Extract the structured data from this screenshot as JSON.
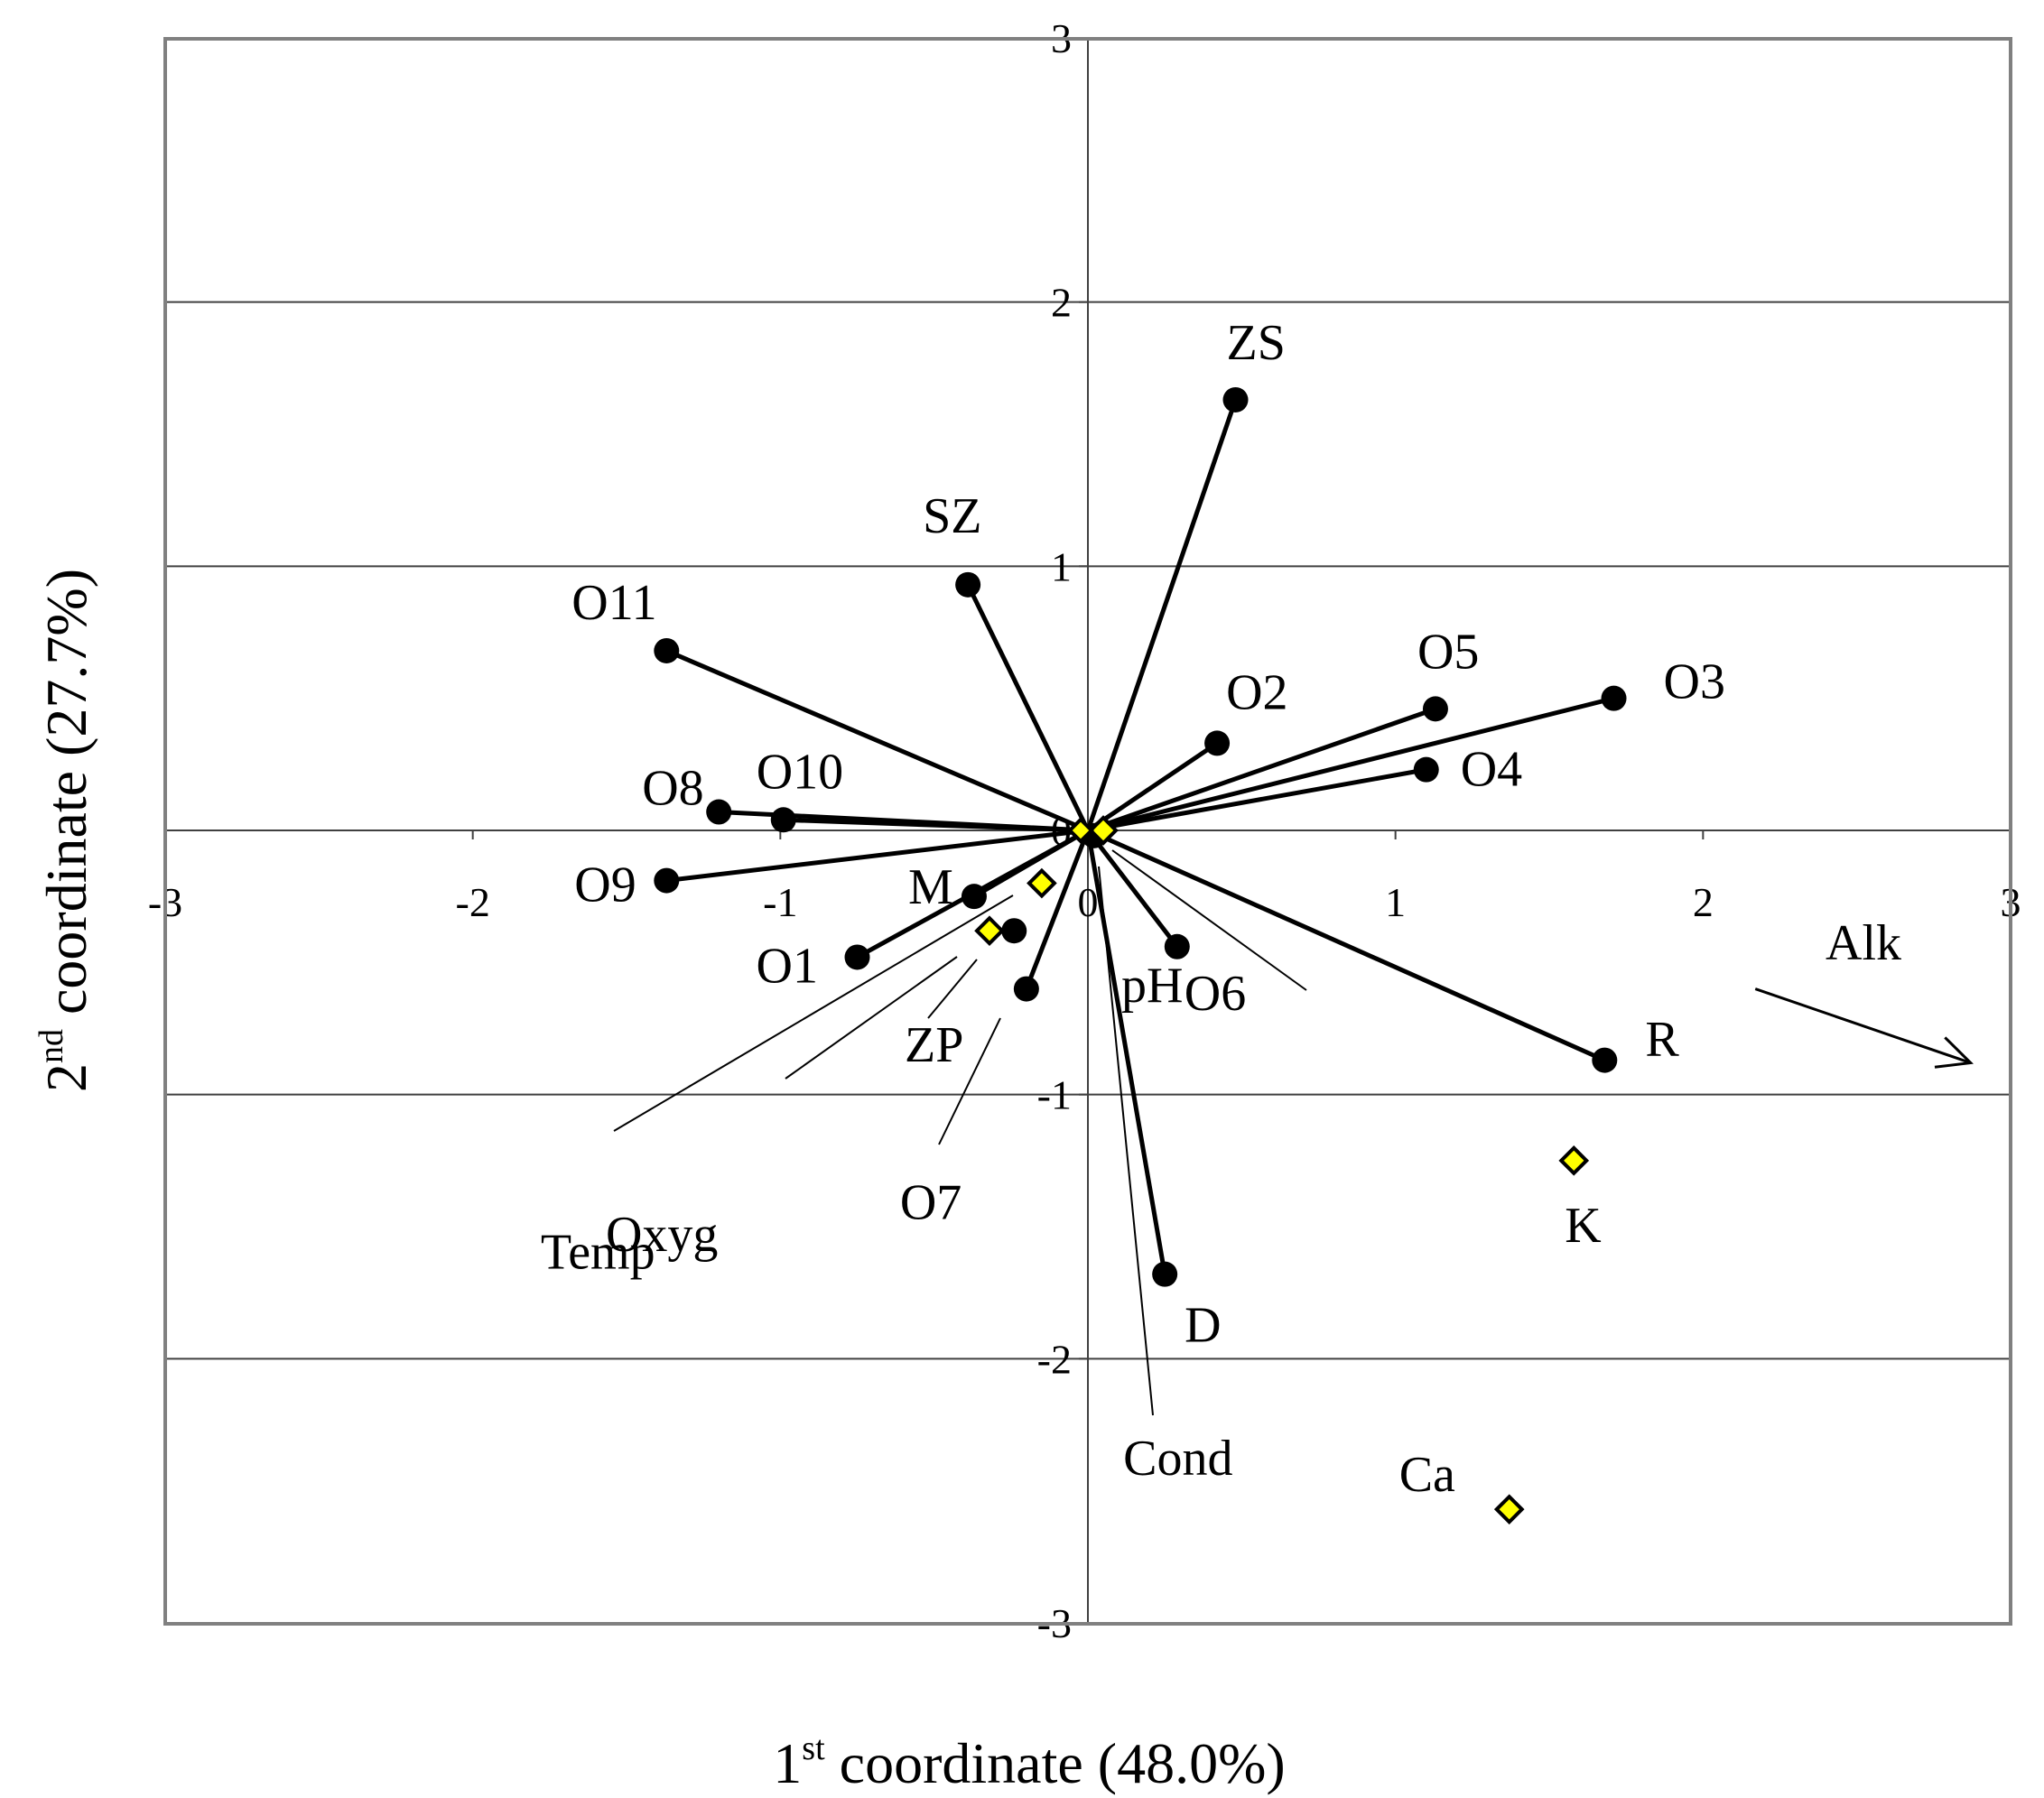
{
  "chart_data": {
    "type": "scatter",
    "title": "",
    "xlabel": {
      "prefix": "1",
      "sup": "st",
      "text": " coordinate (48.0%)"
    },
    "ylabel": {
      "prefix": "2",
      "sup": "nd",
      "text": " coordinate (27.7%)"
    },
    "xlim": [
      -3,
      3
    ],
    "ylim": [
      -3,
      3
    ],
    "xticks": [
      -3,
      -2,
      -1,
      0,
      1,
      2,
      3
    ],
    "yticks": [
      -3,
      -2,
      -1,
      0,
      1,
      2,
      3
    ],
    "grid": "horizontal",
    "samples": [
      {
        "label": "ZS",
        "x": 0.48,
        "y": 1.63
      },
      {
        "label": "SZ",
        "x": -0.39,
        "y": 0.93
      },
      {
        "label": "O11",
        "x": -1.37,
        "y": 0.68
      },
      {
        "label": "O2",
        "x": 0.42,
        "y": 0.33
      },
      {
        "label": "O5",
        "x": 1.13,
        "y": 0.46
      },
      {
        "label": "O3",
        "x": 1.71,
        "y": 0.5
      },
      {
        "label": "O4",
        "x": 1.1,
        "y": 0.23
      },
      {
        "label": "O8",
        "x": -1.2,
        "y": 0.07
      },
      {
        "label": "O10",
        "x": -0.99,
        "y": 0.04
      },
      {
        "label": "O9",
        "x": -1.37,
        "y": -0.19
      },
      {
        "label": "M",
        "x": -0.37,
        "y": -0.25
      },
      {
        "label": "O1",
        "x": -0.75,
        "y": -0.48
      },
      {
        "label": "O7",
        "x": -0.2,
        "y": -0.6
      },
      {
        "label": "O6",
        "x": 0.29,
        "y": -0.44
      },
      {
        "label": "R",
        "x": 1.68,
        "y": -0.87
      },
      {
        "label": "D",
        "x": 0.25,
        "y": -1.68
      }
    ],
    "extra_points": [
      {
        "label": "",
        "x": -0.24,
        "y": -0.38
      },
      {
        "label": "",
        "x": 0.02,
        "y": -0.02
      }
    ],
    "variables": [
      {
        "label": "Temp",
        "x": -0.15,
        "y": -0.2
      },
      {
        "label": "Oxyg",
        "x": -0.32,
        "y": -0.38
      },
      {
        "label": "ZP",
        "x": -0.32,
        "y": -0.38
      },
      {
        "label": "pH",
        "x": 0.05,
        "y": 0.0
      },
      {
        "label": "Cond",
        "x": -0.02,
        "y": -0.03
      },
      {
        "label": "K",
        "x": 1.58,
        "y": -1.25
      },
      {
        "label": "Ca",
        "x": 1.37,
        "y": -2.57
      }
    ],
    "arrow": {
      "label": "Alk",
      "from": [
        2.17,
        -0.6
      ],
      "to": [
        2.87,
        -0.88
      ]
    }
  }
}
